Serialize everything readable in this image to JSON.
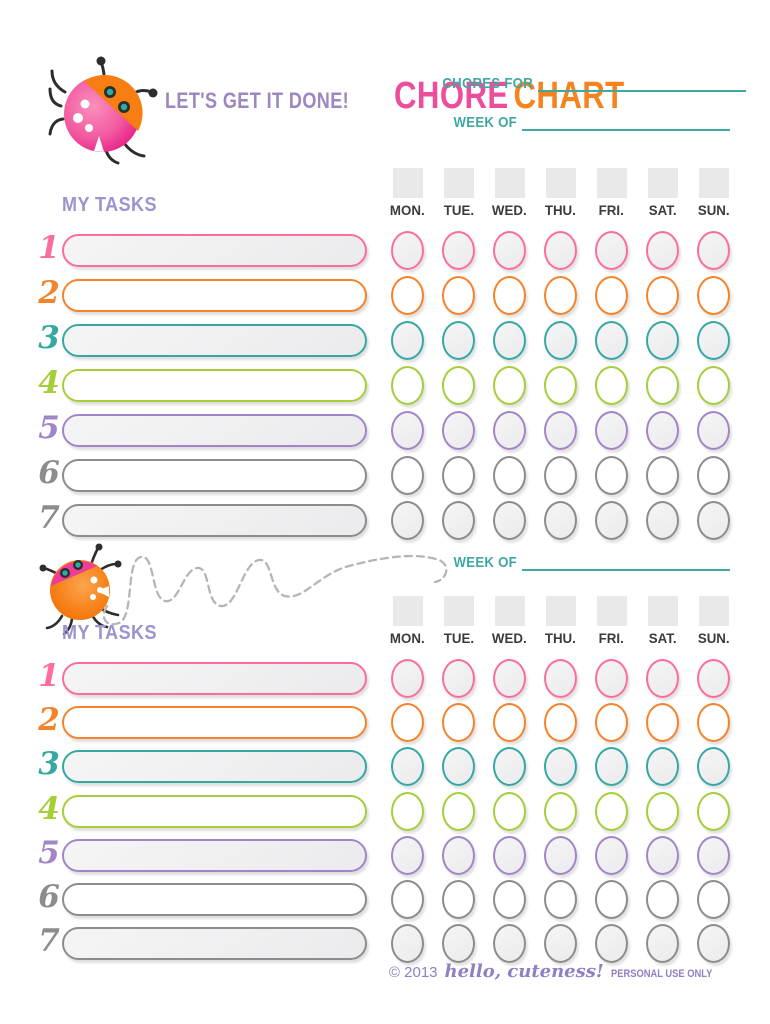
{
  "header": {
    "tagline": "LET'S GET IT DONE!",
    "title": {
      "word1": "CHORE",
      "word2": "CHART"
    },
    "chores_for_label": "CHORES FOR",
    "chores_for_value": "",
    "week_of_label": "WEEK OF",
    "week_of_value": ""
  },
  "days": [
    "MON.",
    "TUE.",
    "WED.",
    "THU.",
    "FRI.",
    "SAT.",
    "SUN."
  ],
  "rows": [
    {
      "number": "1",
      "color": "#FB6D9F",
      "filled": true,
      "task": "",
      "checked_days": []
    },
    {
      "number": "2",
      "color": "#F5832B",
      "filled": false,
      "task": "",
      "checked_days": []
    },
    {
      "number": "3",
      "color": "#35A8A2",
      "filled": true,
      "task": "",
      "checked_days": []
    },
    {
      "number": "4",
      "color": "#A5CE39",
      "filled": false,
      "task": "",
      "checked_days": []
    },
    {
      "number": "5",
      "color": "#A285C7",
      "filled": true,
      "task": "",
      "checked_days": []
    },
    {
      "number": "6",
      "color": "#8C8C8C",
      "filled": false,
      "task": "",
      "checked_days": []
    },
    {
      "number": "7",
      "color": "#8C8C8C",
      "filled": true,
      "task": "",
      "checked_days": []
    }
  ],
  "sections": [
    {
      "my_tasks_label": "MY TASKS"
    },
    {
      "my_tasks_label": "MY TASKS",
      "week_of_label": "WEEK OF",
      "week_of_value": ""
    }
  ],
  "footer": {
    "copyright": "© 2013",
    "brand": "hello, cuteness!",
    "usage": "PERSONAL USE ONLY"
  },
  "colors": {
    "title_pink": "#EC4E9C",
    "title_orange": "#F5831F",
    "tagline_purple": "#9C87C2",
    "teal_lines": "#3FA8A3",
    "my_tasks_lavender": "#9B94CE",
    "day_label_dark": "#3B3B3B",
    "box_gray": "#E9E9E9",
    "fill_gray": "#EFEFEF",
    "footer_purple": "#8F7FC3",
    "trail_gray": "#B5B5B5"
  }
}
